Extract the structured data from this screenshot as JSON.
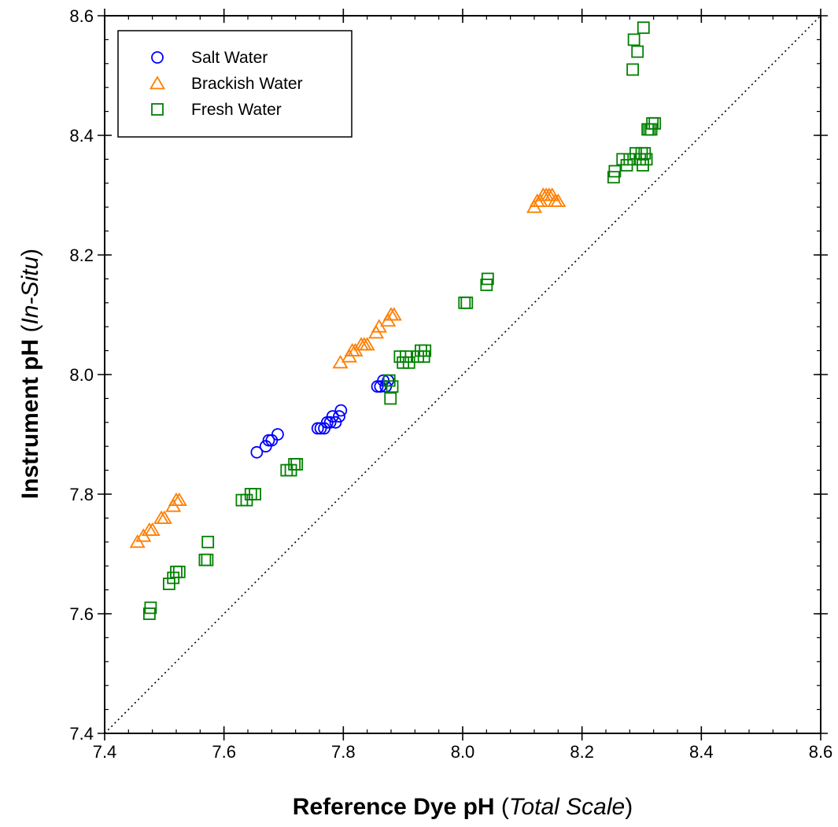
{
  "chart_data": {
    "type": "scatter",
    "xlim": [
      7.4,
      8.6
    ],
    "ylim": [
      7.4,
      8.6
    ],
    "x_ticks": [
      "7.4",
      "7.6",
      "7.8",
      "8.0",
      "8.2",
      "8.4",
      "8.6"
    ],
    "y_ticks": [
      "7.4",
      "7.6",
      "7.8",
      "8.0",
      "8.2",
      "8.4",
      "8.6"
    ],
    "x_minor_step": 0.04,
    "y_minor_step": 0.04,
    "xlabel": {
      "main": "Reference Dye pH",
      "open": " (",
      "italic": "Total Scale",
      "close": ")"
    },
    "ylabel": {
      "main": "Instrument pH",
      "open": " (",
      "italic": "In-Situ",
      "close": ")"
    },
    "reference_line": {
      "style": "dotted",
      "from": [
        7.4,
        7.4
      ],
      "to": [
        8.6,
        8.6
      ]
    },
    "grid": false,
    "legend_position": "top-left",
    "series": [
      {
        "name": "Salt Water",
        "marker": "circle",
        "color": "#0000ff",
        "points": [
          [
            7.655,
            7.87
          ],
          [
            7.67,
            7.88
          ],
          [
            7.675,
            7.89
          ],
          [
            7.68,
            7.89
          ],
          [
            7.69,
            7.9
          ],
          [
            7.757,
            7.91
          ],
          [
            7.762,
            7.91
          ],
          [
            7.768,
            7.91
          ],
          [
            7.773,
            7.92
          ],
          [
            7.778,
            7.92
          ],
          [
            7.782,
            7.93
          ],
          [
            7.787,
            7.92
          ],
          [
            7.793,
            7.93
          ],
          [
            7.796,
            7.94
          ],
          [
            7.857,
            7.98
          ],
          [
            7.862,
            7.98
          ],
          [
            7.867,
            7.99
          ],
          [
            7.871,
            7.98
          ],
          [
            7.875,
            7.99
          ]
        ]
      },
      {
        "name": "Brackish Water",
        "marker": "triangle",
        "color": "#ff7f00",
        "points": [
          [
            7.455,
            7.72
          ],
          [
            7.465,
            7.73
          ],
          [
            7.475,
            7.74
          ],
          [
            7.48,
            7.74
          ],
          [
            7.495,
            7.76
          ],
          [
            7.5,
            7.76
          ],
          [
            7.515,
            7.78
          ],
          [
            7.52,
            7.79
          ],
          [
            7.525,
            7.79
          ],
          [
            7.795,
            8.02
          ],
          [
            7.81,
            8.03
          ],
          [
            7.815,
            8.04
          ],
          [
            7.82,
            8.04
          ],
          [
            7.83,
            8.05
          ],
          [
            7.835,
            8.05
          ],
          [
            7.84,
            8.05
          ],
          [
            7.855,
            8.07
          ],
          [
            7.86,
            8.08
          ],
          [
            7.875,
            8.09
          ],
          [
            7.88,
            8.1
          ],
          [
            7.885,
            8.1
          ],
          [
            8.12,
            8.28
          ],
          [
            8.125,
            8.29
          ],
          [
            8.13,
            8.29
          ],
          [
            8.135,
            8.3
          ],
          [
            8.14,
            8.3
          ],
          [
            8.145,
            8.3
          ],
          [
            8.15,
            8.3
          ],
          [
            8.155,
            8.29
          ],
          [
            8.16,
            8.29
          ]
        ]
      },
      {
        "name": "Fresh Water",
        "marker": "square",
        "color": "#008000",
        "points": [
          [
            7.475,
            7.6
          ],
          [
            7.477,
            7.61
          ],
          [
            7.508,
            7.65
          ],
          [
            7.515,
            7.66
          ],
          [
            7.52,
            7.67
          ],
          [
            7.525,
            7.67
          ],
          [
            7.568,
            7.69
          ],
          [
            7.572,
            7.69
          ],
          [
            7.573,
            7.72
          ],
          [
            7.63,
            7.79
          ],
          [
            7.638,
            7.79
          ],
          [
            7.645,
            7.8
          ],
          [
            7.652,
            7.8
          ],
          [
            7.705,
            7.84
          ],
          [
            7.712,
            7.84
          ],
          [
            7.718,
            7.85
          ],
          [
            7.722,
            7.85
          ],
          [
            7.877,
            7.99
          ],
          [
            7.879,
            7.96
          ],
          [
            7.882,
            7.98
          ],
          [
            7.895,
            8.03
          ],
          [
            7.9,
            8.02
          ],
          [
            7.905,
            8.03
          ],
          [
            7.91,
            8.02
          ],
          [
            7.925,
            8.03
          ],
          [
            7.93,
            8.04
          ],
          [
            7.935,
            8.03
          ],
          [
            7.937,
            8.04
          ],
          [
            8.003,
            8.12
          ],
          [
            8.007,
            8.12
          ],
          [
            8.04,
            8.15
          ],
          [
            8.042,
            8.16
          ],
          [
            8.253,
            8.33
          ],
          [
            8.255,
            8.34
          ],
          [
            8.268,
            8.36
          ],
          [
            8.275,
            8.35
          ],
          [
            8.28,
            8.36
          ],
          [
            8.285,
            8.51
          ],
          [
            8.287,
            8.56
          ],
          [
            8.29,
            8.37
          ],
          [
            8.293,
            8.54
          ],
          [
            8.297,
            8.36
          ],
          [
            8.3,
            8.37
          ],
          [
            8.302,
            8.35
          ],
          [
            8.303,
            8.58
          ],
          [
            8.305,
            8.37
          ],
          [
            8.308,
            8.36
          ],
          [
            8.31,
            8.41
          ],
          [
            8.313,
            8.41
          ],
          [
            8.316,
            8.41
          ],
          [
            8.318,
            8.42
          ],
          [
            8.322,
            8.42
          ]
        ]
      }
    ]
  }
}
